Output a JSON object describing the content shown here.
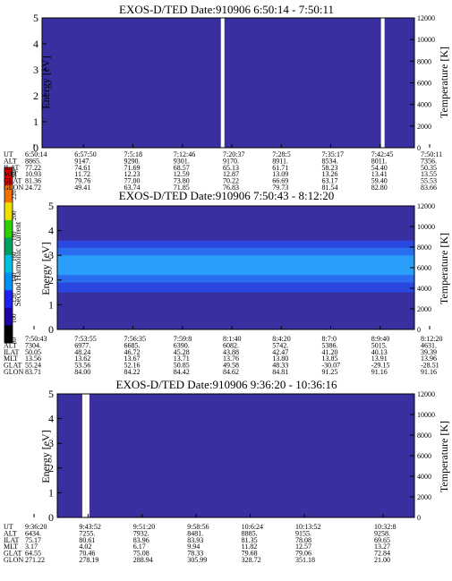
{
  "chart_data": [
    {
      "type": "heatmap",
      "title": "EXOS-D/TED   Date:910906  6:50:14 - 7:50:11",
      "ylabel": "Energy [eV]",
      "y2label": "Temperature [K]",
      "ylim": [
        0,
        5
      ],
      "y2lim": [
        0,
        12000
      ],
      "yticks": [
        "0",
        "1",
        "2",
        "3",
        "4",
        "5"
      ],
      "y2ticks": [
        "0",
        "2000",
        "4000",
        "6000",
        "8000",
        "10000",
        "12000"
      ],
      "intensity_bands": [],
      "data_gaps": [
        0.485,
        0.915
      ],
      "table": {
        "row_labels": [
          "UT",
          "ALT",
          "ILAT",
          "MLT",
          "GLAT",
          "GLON"
        ],
        "columns": [
          [
            "6:50:14",
            "8865.",
            "77.22",
            "10.93",
            "81.36",
            "24.72"
          ],
          [
            "6:57:50",
            "9147.",
            "74.61",
            "11.72",
            "79.76",
            "49.41"
          ],
          [
            "7:5:18",
            "9290.",
            "71.69",
            "12.23",
            "77.00",
            "63.74"
          ],
          [
            "7:12:46",
            "9301.",
            "68.57",
            "12.59",
            "73.80",
            "71.85"
          ],
          [
            "7:20:37",
            "9170.",
            "65.13",
            "12.87",
            "70.22",
            "76.83"
          ],
          [
            "7:28:5",
            "8911.",
            "61.71",
            "13.09",
            "66.69",
            "79.73"
          ],
          [
            "7:35:17",
            "8534.",
            "58.23",
            "13.26",
            "63.17",
            "81.54"
          ],
          [
            "7:42:45",
            "8011.",
            "54.40",
            "13.41",
            "59.40",
            "82.80"
          ],
          [
            "7:50:11",
            "7356.",
            "50.35",
            "13.55",
            "55.53",
            "83.66"
          ]
        ]
      }
    },
    {
      "type": "heatmap",
      "title": "EXOS-D/TED   Date:910906  7:50:43 - 8:12:20",
      "ylabel": "Energy [eV]",
      "y2label": "Temperature [K]",
      "ylim": [
        0,
        5
      ],
      "y2lim": [
        0,
        12000
      ],
      "yticks": [
        "0",
        "1",
        "2",
        "3",
        "4",
        "5"
      ],
      "y2ticks": [
        "0",
        "2000",
        "4000",
        "6000",
        "8000",
        "10000",
        "12000"
      ],
      "intensity_bands": [
        {
          "from": 1.5,
          "to": 3.6,
          "level": 1
        },
        {
          "from": 1.9,
          "to": 3.3,
          "level": 2
        },
        {
          "from": 2.2,
          "to": 3.0,
          "level": 3
        }
      ],
      "data_gaps": [],
      "table": {
        "row_labels": [
          "UT",
          "ALT",
          "ILAT",
          "MLT",
          "GLAT",
          "GLON"
        ],
        "columns": [
          [
            "7:50:43",
            "7304.",
            "50.05",
            "13.56",
            "55.24",
            "83.71"
          ],
          [
            "7:53:55",
            "6977.",
            "48.24",
            "13.62",
            "53.56",
            "84.00"
          ],
          [
            "7:56:35",
            "6685.",
            "46.72",
            "13.67",
            "52.16",
            "84.22"
          ],
          [
            "7:59:8",
            "6390.",
            "45.28",
            "13.71",
            "50.85",
            "84.42"
          ],
          [
            "8:1:40",
            "6082.",
            "43.88",
            "13.76",
            "49.58",
            "84.62"
          ],
          [
            "8:4:20",
            "5742.",
            "42.47",
            "13.80",
            "48.33",
            "84.81"
          ],
          [
            "8:7:0",
            "5386.",
            "41.20",
            "13.85",
            "-30.07",
            "91.25"
          ],
          [
            "8:9:40",
            "5015.",
            "40.13",
            "13.91",
            "-29.15",
            "91.16"
          ],
          [
            "8:12:20",
            "4631.",
            "39.39",
            "13.96",
            "-28.51",
            "91.16"
          ]
        ]
      }
    },
    {
      "type": "heatmap",
      "title": "EXOS-D/TED   Date:910906  9:36:20 - 10:36:16",
      "ylabel": "Energy [eV]",
      "y2label": "Temperature [K]",
      "ylim": [
        0,
        5
      ],
      "y2lim": [
        0,
        12000
      ],
      "yticks": [
        "0",
        "1",
        "2",
        "3",
        "4",
        "5"
      ],
      "y2ticks": [
        "0",
        "2000",
        "4000",
        "6000",
        "8000",
        "10000",
        "12000"
      ],
      "intensity_bands": [],
      "data_gaps": [
        0.075,
        0.085
      ],
      "table": {
        "row_labels": [
          "UT",
          "ALT",
          "ILAT",
          "MLT",
          "GLAT",
          "GLON"
        ],
        "columns": [
          [
            "9:36:20",
            "6434.",
            "75.17",
            "3.17",
            "64.55",
            "271.22"
          ],
          [
            "9:43:52",
            "7255.",
            "80.61",
            "4.02",
            "70.46",
            "278.19"
          ],
          [
            "9:51:20",
            "7932.",
            "83.96",
            "6.17",
            "75.08",
            "288.94"
          ],
          [
            "9:58:56",
            "8481.",
            "83.93",
            "9.94",
            "78.33",
            "305.99"
          ],
          [
            "10:6:24",
            "8885.",
            "81.35",
            "11.82",
            "79.68",
            "328.72"
          ],
          [
            "10:13:52",
            "9155.",
            "78.08",
            "12.57",
            "79.06",
            "351.18"
          ],
          [
            "10:32:8",
            "9258.",
            "69.65",
            "13.27",
            "72.84",
            "21.00"
          ]
        ]
      }
    }
  ],
  "colorbar": {
    "label": "Second Harmonic Current",
    "ticks": [
      "240",
      "220",
      "200",
      "180",
      "160",
      "140",
      "120",
      "100",
      "80"
    ],
    "colors": [
      "#e00000",
      "#f07000",
      "#f0e000",
      "#30d000",
      "#00a060",
      "#00c0e0",
      "#0090f0",
      "#2020f0",
      "#2000a0",
      "#000000"
    ]
  },
  "colors": {
    "background_field": "#3a2fa0",
    "level1": "#2a48e0",
    "level2": "#2a6ef0",
    "level3": "#2a9ef8"
  }
}
